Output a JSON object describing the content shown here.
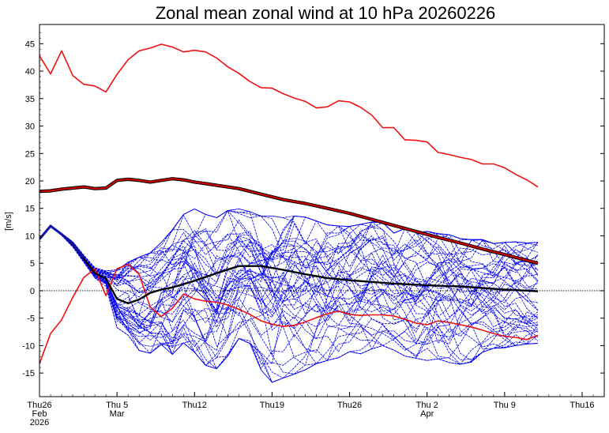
{
  "chart_data": {
    "type": "line",
    "title": "Zonal mean zonal wind at 10 hPa 20260226",
    "ylabel": "[m/s]",
    "xlabel": "",
    "ylim": [
      -19.3,
      48.5
    ],
    "xlim": [
      "2026-02-26",
      "2026-04-18"
    ],
    "zero_line": true,
    "grid": false,
    "y_ticks": [
      -15,
      -10,
      -5,
      0,
      5,
      10,
      15,
      20,
      25,
      30,
      35,
      40,
      45
    ],
    "x_ticks": [
      {
        "date": "2026-02-26",
        "lines": [
          "Thu26",
          "Feb",
          "2026"
        ]
      },
      {
        "date": "2026-03-05",
        "lines": [
          "Thu 5",
          "Mar"
        ]
      },
      {
        "date": "2026-03-12",
        "lines": [
          "Thu12"
        ]
      },
      {
        "date": "2026-03-19",
        "lines": [
          "Thu19"
        ]
      },
      {
        "date": "2026-03-26",
        "lines": [
          "Thu26"
        ]
      },
      {
        "date": "2026-04-02",
        "lines": [
          "Thu 2",
          "Apr"
        ]
      },
      {
        "date": "2026-04-09",
        "lines": [
          "Thu 9"
        ]
      },
      {
        "date": "2026-04-16",
        "lines": [
          "Thu16"
        ]
      }
    ],
    "series": [
      {
        "role": "climatology_max",
        "color": "#ee1111",
        "x": [
          "2026-02-26",
          "2026-02-27",
          "2026-02-28",
          "2026-03-01",
          "2026-03-02",
          "2026-03-03",
          "2026-03-04",
          "2026-03-05",
          "2026-03-06",
          "2026-03-07",
          "2026-03-08",
          "2026-03-09",
          "2026-03-10",
          "2026-03-11",
          "2026-03-12",
          "2026-03-13",
          "2026-03-14",
          "2026-03-15",
          "2026-03-16",
          "2026-03-17",
          "2026-03-18",
          "2026-03-19",
          "2026-03-20",
          "2026-03-21",
          "2026-03-22",
          "2026-03-23",
          "2026-03-24",
          "2026-03-25",
          "2026-03-26",
          "2026-03-27",
          "2026-03-28",
          "2026-03-29",
          "2026-03-30",
          "2026-03-31",
          "2026-04-01",
          "2026-04-02",
          "2026-04-03",
          "2026-04-04",
          "2026-04-05",
          "2026-04-06",
          "2026-04-07",
          "2026-04-08",
          "2026-04-09",
          "2026-04-10",
          "2026-04-11",
          "2026-04-12"
        ],
        "values": [
          42.8,
          39.5,
          43.7,
          39.2,
          37.6,
          37.3,
          36.2,
          39.4,
          42.1,
          43.7,
          44.2,
          44.9,
          44.4,
          43.5,
          43.8,
          43.5,
          42.4,
          40.8,
          39.6,
          38.1,
          37.0,
          36.9,
          35.9,
          35.1,
          34.5,
          33.3,
          33.5,
          34.6,
          34.4,
          33.4,
          32.0,
          29.7,
          29.7,
          27.5,
          27.4,
          27.1,
          25.2,
          24.8,
          24.3,
          23.9,
          23.1,
          23.1,
          22.4,
          21.2,
          20.2,
          18.9
        ]
      },
      {
        "role": "climatology_mean",
        "color": "#8b0000",
        "x": [
          "2026-02-26",
          "2026-02-27",
          "2026-02-28",
          "2026-03-01",
          "2026-03-02",
          "2026-03-03",
          "2026-03-04",
          "2026-03-05",
          "2026-03-06",
          "2026-03-07",
          "2026-03-08",
          "2026-03-09",
          "2026-03-10",
          "2026-03-11",
          "2026-03-12",
          "2026-03-14",
          "2026-03-16",
          "2026-03-18",
          "2026-03-20",
          "2026-03-22",
          "2026-03-24",
          "2026-03-26",
          "2026-03-28",
          "2026-03-30",
          "2026-04-01",
          "2026-04-03",
          "2026-04-05",
          "2026-04-07",
          "2026-04-09",
          "2026-04-12"
        ],
        "values": [
          18.1,
          18.2,
          18.5,
          18.7,
          18.9,
          18.6,
          18.7,
          20.1,
          20.3,
          20.1,
          19.8,
          20.1,
          20.4,
          20.2,
          19.8,
          19.2,
          18.6,
          17.6,
          16.6,
          15.9,
          15.0,
          14.1,
          13.0,
          11.9,
          10.8,
          9.7,
          8.7,
          7.6,
          6.6,
          5.0
        ]
      },
      {
        "role": "climatology_min",
        "color": "#ee1111",
        "x": [
          "2026-02-26",
          "2026-02-27",
          "2026-02-28",
          "2026-03-01",
          "2026-03-02",
          "2026-03-03",
          "2026-03-04",
          "2026-03-05",
          "2026-03-06",
          "2026-03-07",
          "2026-03-08",
          "2026-03-09",
          "2026-03-10",
          "2026-03-11",
          "2026-03-12",
          "2026-03-13",
          "2026-03-14",
          "2026-03-15",
          "2026-03-16",
          "2026-03-17",
          "2026-03-18",
          "2026-03-19",
          "2026-03-20",
          "2026-03-21",
          "2026-03-22",
          "2026-03-23",
          "2026-03-24",
          "2026-03-25",
          "2026-03-26",
          "2026-03-27",
          "2026-03-28",
          "2026-03-29",
          "2026-03-30",
          "2026-03-31",
          "2026-04-01",
          "2026-04-02",
          "2026-04-03",
          "2026-04-04",
          "2026-04-05",
          "2026-04-06",
          "2026-04-07",
          "2026-04-08",
          "2026-04-09",
          "2026-04-10",
          "2026-04-11",
          "2026-04-12"
        ],
        "values": [
          -13.3,
          -7.8,
          -5.3,
          -1.2,
          2.4,
          4.0,
          -0.9,
          4.0,
          4.8,
          3.0,
          -3.0,
          -4.7,
          -3.2,
          -0.6,
          -1.5,
          -1.9,
          -2.1,
          -2.6,
          -3.4,
          -4.3,
          -5.5,
          -6.1,
          -6.5,
          -6.3,
          -5.7,
          -4.9,
          -4.2,
          -3.7,
          -4.3,
          -4.5,
          -4.4,
          -4.4,
          -4.6,
          -5.2,
          -5.9,
          -6.2,
          -5.5,
          -5.8,
          -6.2,
          -6.6,
          -7.2,
          -7.8,
          -8.3,
          -8.5,
          -8.9,
          -8.1
        ]
      },
      {
        "role": "ensemble_mean",
        "color": "#000000",
        "x": [
          "2026-02-26",
          "2026-02-27",
          "2026-02-28",
          "2026-03-01",
          "2026-03-02",
          "2026-03-03",
          "2026-03-04",
          "2026-03-05",
          "2026-03-06",
          "2026-03-07",
          "2026-03-08",
          "2026-03-09",
          "2026-03-10",
          "2026-03-12",
          "2026-03-14",
          "2026-03-16",
          "2026-03-18",
          "2026-03-20",
          "2026-03-22",
          "2026-03-24",
          "2026-03-26",
          "2026-03-28",
          "2026-03-30",
          "2026-04-01",
          "2026-04-03",
          "2026-04-05",
          "2026-04-07",
          "2026-04-09",
          "2026-04-12"
        ],
        "values": [
          9.4,
          11.8,
          10.3,
          8.4,
          5.8,
          3.2,
          2.2,
          -1.5,
          -2.3,
          -1.6,
          -0.4,
          0.2,
          0.6,
          1.8,
          3.2,
          4.5,
          4.5,
          3.8,
          3.0,
          2.3,
          1.9,
          1.6,
          1.3,
          1.1,
          0.9,
          0.8,
          0.5,
          0.2,
          -0.1
        ]
      }
    ],
    "ensemble_members": {
      "color": "#0000ee",
      "count": 50,
      "x_start": "2026-02-26",
      "x_end": "2026-04-12",
      "envelope_upper": [
        9.8,
        12.0,
        10.8,
        9.4,
        6.8,
        4.4,
        3.6,
        3.8,
        5.2,
        6.1,
        6.9,
        8.8,
        11.1,
        13.9,
        14.9,
        13.9,
        13.3,
        14.6,
        14.9,
        14.4,
        13.6,
        13.6,
        13.3,
        13.6,
        13.4,
        12.7,
        12.0,
        11.8,
        11.7,
        12.1,
        12.5,
        12.4,
        10.5,
        11.3,
        10.6,
        10.8,
        10.4,
        10.2,
        9.5,
        9.3,
        9.3,
        8.6,
        8.8,
        8.9,
        8.7,
        8.8
      ],
      "envelope_lower": [
        9.0,
        11.6,
        9.7,
        7.5,
        4.8,
        2.1,
        0.8,
        -6.7,
        -8.1,
        -10.9,
        -11.4,
        -9.8,
        -11.6,
        -9.5,
        -11.2,
        -13.6,
        -14.2,
        -11.9,
        -8.7,
        -9.6,
        -14.4,
        -16.7,
        -15.9,
        -15.2,
        -14.4,
        -13.3,
        -12.7,
        -12.2,
        -11.1,
        -11.5,
        -10.6,
        -10.0,
        -10.8,
        -11.9,
        -12.3,
        -12.7,
        -12.4,
        -13.1,
        -13.4,
        -13.0,
        -11.2,
        -10.5,
        -10.4,
        -10.0,
        -9.7,
        -9.6
      ]
    }
  }
}
